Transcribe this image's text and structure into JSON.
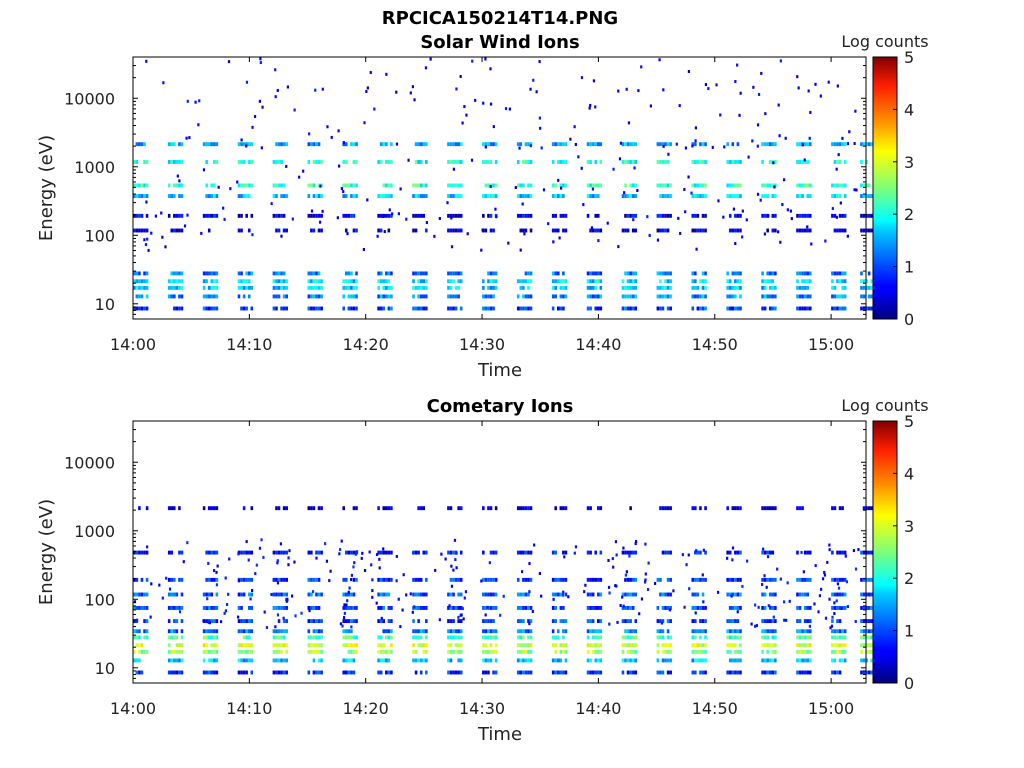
{
  "title": "RPCICA150214T14.PNG",
  "chart_data": [
    {
      "type": "heatmap",
      "title": "Solar Wind Ions",
      "xlabel": "Time",
      "ylabel": "Energy (eV)",
      "yscale": "log",
      "xlim": [
        "14:00",
        "15:03"
      ],
      "ylim": [
        6,
        40000
      ],
      "x_ticks": [
        "14:00",
        "14:10",
        "14:20",
        "14:30",
        "14:40",
        "14:50",
        "15:00"
      ],
      "y_ticks": [
        {
          "value": 10,
          "label": "10"
        },
        {
          "value": 100,
          "label": "100"
        },
        {
          "value": 1000,
          "label": "1000"
        },
        {
          "value": 10000,
          "label": "10000"
        }
      ],
      "colorbar": {
        "label": "Log counts",
        "min": 0,
        "max": 5,
        "ticks": [
          "0",
          "1",
          "2",
          "3",
          "4",
          "5"
        ],
        "colormap": "jet"
      },
      "sweep_start_minutes": [
        0,
        3,
        6,
        9,
        12,
        15,
        18,
        21,
        24,
        27,
        30,
        33,
        36,
        39,
        42,
        45,
        48,
        51,
        54,
        57,
        60,
        62.5
      ],
      "bands": [
        {
          "energy": 8,
          "log_counts": 0.9
        },
        {
          "energy": 12,
          "log_counts": 1.3
        },
        {
          "energy": 16,
          "log_counts": 1.6
        },
        {
          "energy": 20,
          "log_counts": 1.7
        },
        {
          "energy": 26,
          "log_counts": 1.2
        },
        {
          "energy": 110,
          "log_counts": 0.4
        },
        {
          "energy": 180,
          "log_counts": 0.5
        },
        {
          "energy": 350,
          "log_counts": 1.6
        },
        {
          "energy": 500,
          "log_counts": 2.1
        },
        {
          "energy": 1100,
          "log_counts": 2.0
        },
        {
          "energy": 2000,
          "log_counts": 1.4
        }
      ],
      "background_energy_range": [
        60,
        40000
      ],
      "background_log_counts": 0.3
    },
    {
      "type": "heatmap",
      "title": "Cometary Ions",
      "xlabel": "Time",
      "ylabel": "Energy (eV)",
      "yscale": "log",
      "xlim": [
        "14:00",
        "15:03"
      ],
      "ylim": [
        6,
        40000
      ],
      "x_ticks": [
        "14:00",
        "14:10",
        "14:20",
        "14:30",
        "14:40",
        "14:50",
        "15:00"
      ],
      "y_ticks": [
        {
          "value": 10,
          "label": "10"
        },
        {
          "value": 100,
          "label": "100"
        },
        {
          "value": 1000,
          "label": "1000"
        },
        {
          "value": 10000,
          "label": "10000"
        }
      ],
      "colorbar": {
        "label": "Log counts",
        "min": 0,
        "max": 5,
        "ticks": [
          "0",
          "1",
          "2",
          "3",
          "4",
          "5"
        ],
        "colormap": "jet"
      },
      "sweep_start_minutes": [
        0,
        3,
        6,
        9,
        12,
        15,
        18,
        21,
        24,
        27,
        30,
        33,
        36,
        39,
        42,
        45,
        48,
        51,
        54,
        57,
        60,
        62.5
      ],
      "bands": [
        {
          "energy": 8,
          "log_counts": 0.8
        },
        {
          "energy": 12,
          "log_counts": 1.6
        },
        {
          "energy": 16,
          "log_counts": 2.6
        },
        {
          "energy": 20,
          "log_counts": 2.9
        },
        {
          "energy": 26,
          "log_counts": 2.2
        },
        {
          "energy": 32,
          "log_counts": 1.2
        },
        {
          "energy": 45,
          "log_counts": 0.9
        },
        {
          "energy": 70,
          "log_counts": 1.0
        },
        {
          "energy": 110,
          "log_counts": 1.1
        },
        {
          "energy": 180,
          "log_counts": 0.9
        },
        {
          "energy": 450,
          "log_counts": 0.7
        },
        {
          "energy": 2000,
          "log_counts": 0.3
        }
      ],
      "background_energy_range": [
        40,
        800
      ],
      "background_log_counts": 0.4
    }
  ]
}
